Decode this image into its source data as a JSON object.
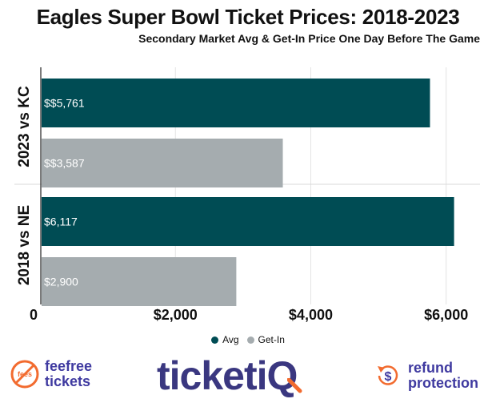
{
  "title": "Eagles Super Bowl Ticket Prices: 2018-2023",
  "subtitle": "Secondary Market Avg & Get-In Price One Day Before The Game",
  "chart_data": {
    "type": "bar",
    "orientation": "horizontal",
    "groups": [
      "2023 vs KC",
      "2018 vs NE"
    ],
    "series": [
      {
        "name": "Avg",
        "color": "#004c54",
        "values": [
          5761,
          6117
        ],
        "value_labels": [
          "$$5,761",
          "$6,117"
        ]
      },
      {
        "name": "Get-In",
        "color": "#a5acaf",
        "values": [
          3587,
          2900
        ],
        "value_labels": [
          "$$3,587",
          "$2,900"
        ]
      }
    ],
    "xlim": [
      0,
      6500
    ],
    "x_ticks": [
      0,
      2000,
      4000,
      6000
    ],
    "x_tick_labels": [
      "0",
      "$2,000",
      "$4,000",
      "$6,000"
    ],
    "grid": true,
    "legend_position": "bottom"
  },
  "footer": {
    "feefree": {
      "line1": "feefree",
      "line2": "tickets",
      "icon_text": "fees"
    },
    "brand": {
      "text": "ticketiQ"
    },
    "refund": {
      "line1": "refund",
      "line2": "protection",
      "icon_text": "$"
    }
  },
  "colors": {
    "avg": "#004c54",
    "getin": "#a5acaf",
    "brand": "#3a3780",
    "accent_orange": "#f26b2f"
  }
}
